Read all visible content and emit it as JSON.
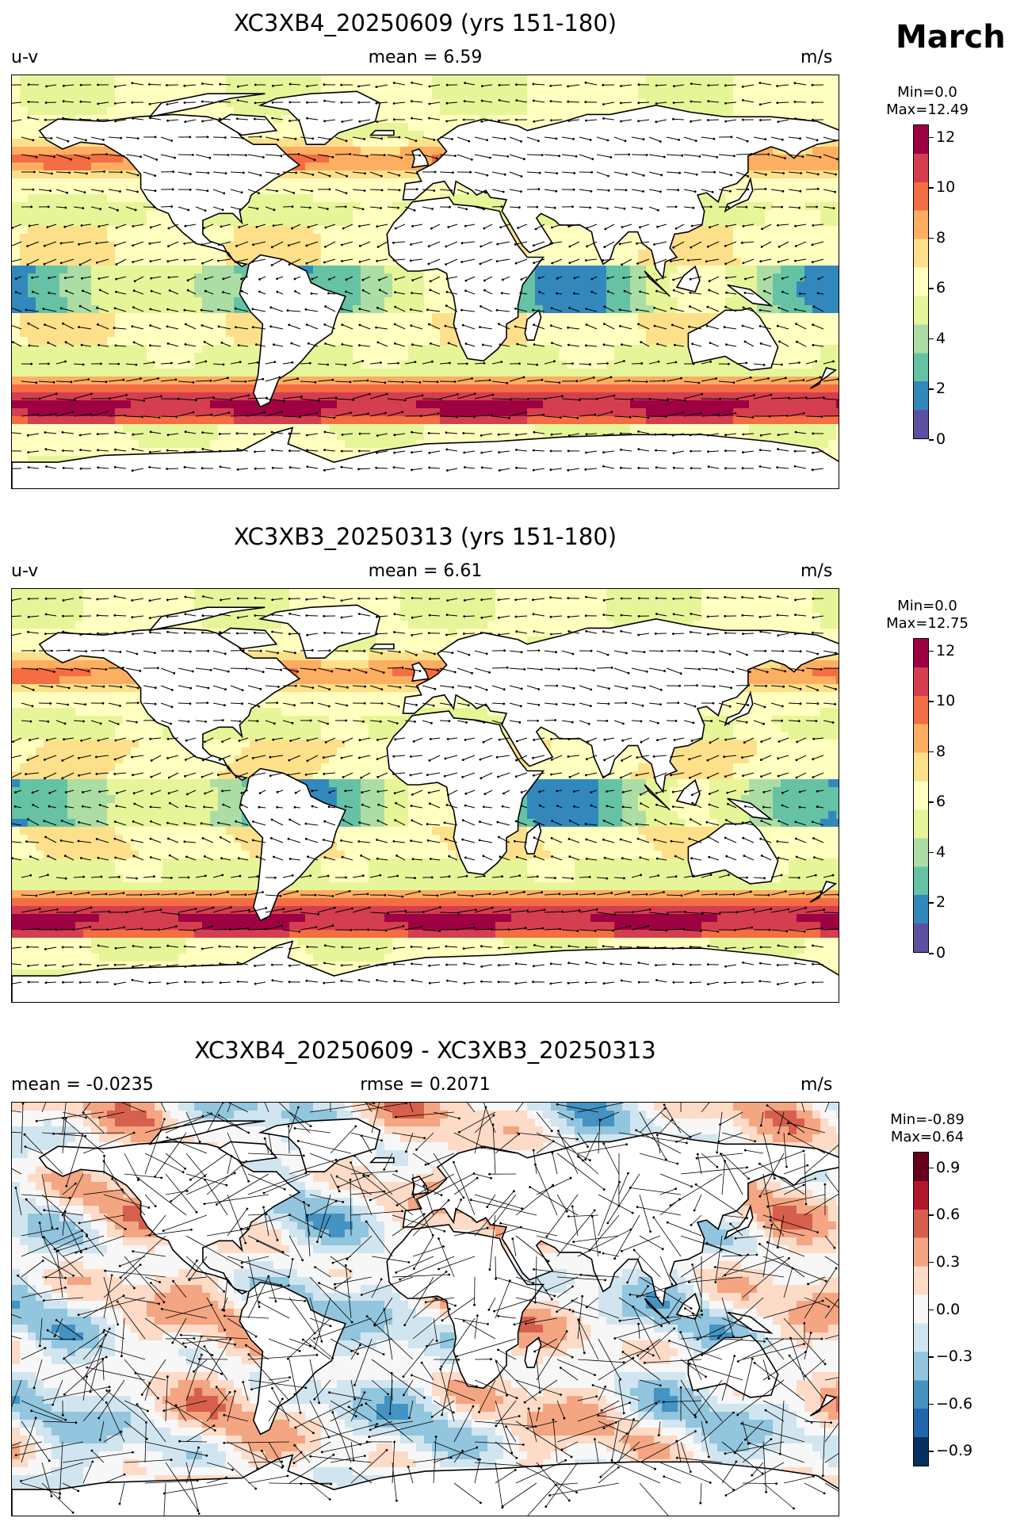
{
  "figure": {
    "month": "March"
  },
  "panels": [
    {
      "id": "panel1",
      "title": "XC3XB4_20250609 (yrs 151-180)",
      "left_label": "u-v",
      "center_label": "mean = 6.59",
      "right_label": "m/s",
      "colorbar": {
        "min_label": "Min=0.0",
        "max_label": "Max=12.49",
        "ticks": [
          "12",
          "10",
          "8",
          "6",
          "4",
          "2",
          "0"
        ]
      }
    },
    {
      "id": "panel2",
      "title": "XC3XB3_20250313 (yrs 151-180)",
      "left_label": "u-v",
      "center_label": "mean = 6.61",
      "right_label": "m/s",
      "colorbar": {
        "min_label": "Min=0.0",
        "max_label": "Max=12.75",
        "ticks": [
          "12",
          "10",
          "8",
          "6",
          "4",
          "2",
          "0"
        ]
      }
    },
    {
      "id": "panel3",
      "title": "XC3XB4_20250609 - XC3XB3_20250313",
      "left_label": "mean = -0.0235",
      "center_label": "rmse = 0.2071",
      "right_label": "m/s",
      "colorbar": {
        "min_label": "Min=-0.89",
        "max_label": "Max=0.64",
        "ticks": [
          "0.9",
          "0.6",
          "0.3",
          "0.0",
          "−0.3",
          "−0.6",
          "−0.9"
        ]
      }
    }
  ],
  "colors": {
    "speed_scale": [
      "#5e4fa2",
      "#3288bd",
      "#66c2a5",
      "#abdda4",
      "#e6f598",
      "#ffffbf",
      "#fee08b",
      "#fdae61",
      "#f46d43",
      "#d53e4f",
      "#9e0142"
    ],
    "diff_scale": [
      "#053061",
      "#2166ac",
      "#4393c3",
      "#92c5de",
      "#d1e5f0",
      "#f7f7f7",
      "#fddbc7",
      "#f4a582",
      "#d6604d",
      "#b2182b",
      "#67001f"
    ],
    "land": "#ffffff",
    "coast": "#000000"
  }
}
